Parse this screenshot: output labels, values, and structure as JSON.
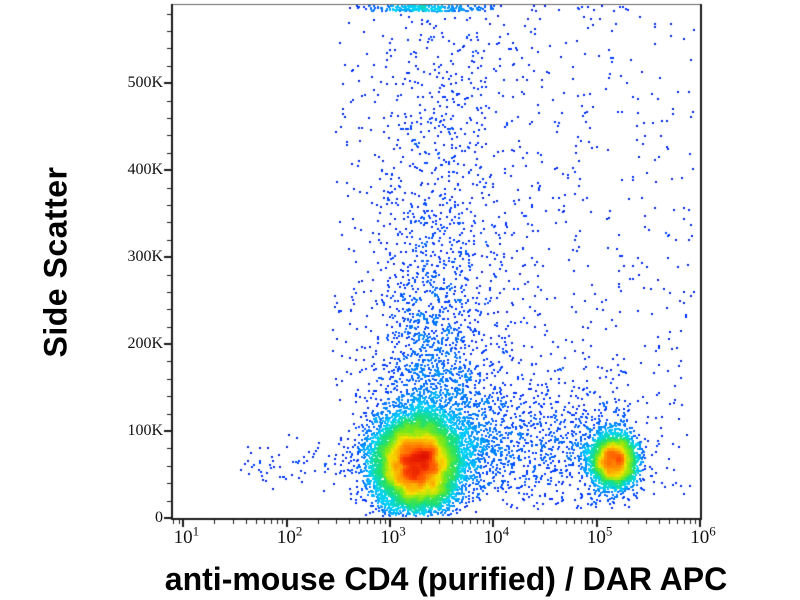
{
  "chart_data": {
    "type": "scatter",
    "subtype": "flow_cytometry_pseudocolor_density_dot_plot",
    "title": "",
    "xlabel": "anti-mouse CD4 (purified) / DAR APC",
    "ylabel": "Side Scatter",
    "x_scale": "log10",
    "x_range_log10": [
      0.9,
      6.0
    ],
    "y_range": [
      0,
      590000
    ],
    "grid": false,
    "legend": false,
    "background": "#ffffff",
    "axis_color": "#1a1a1a",
    "x_ticks": [
      {
        "log10": 1,
        "base": "10",
        "exp": "1"
      },
      {
        "log10": 2,
        "base": "10",
        "exp": "2"
      },
      {
        "log10": 3,
        "base": "10",
        "exp": "3"
      },
      {
        "log10": 4,
        "base": "10",
        "exp": "4"
      },
      {
        "log10": 5,
        "base": "10",
        "exp": "5"
      },
      {
        "log10": 6,
        "base": "10",
        "exp": "6"
      }
    ],
    "x_minor_ticks_per_decade": [
      2,
      3,
      4,
      5,
      6,
      7,
      8,
      9
    ],
    "y_ticks": {
      "values": [
        0,
        100000,
        200000,
        300000,
        400000,
        500000
      ],
      "labels": [
        "0",
        "100K",
        "200K",
        "300K",
        "400K",
        "500K"
      ],
      "minor_step": 20000,
      "minor_max": 580000
    },
    "colormap": {
      "name": "jet-pseudocolor (density: blue = sparse, red = dense)",
      "stops": [
        [
          0.0,
          "#000090"
        ],
        [
          0.16,
          "#0030ff"
        ],
        [
          0.36,
          "#00d2ff"
        ],
        [
          0.52,
          "#1ee06e"
        ],
        [
          0.64,
          "#7ce817"
        ],
        [
          0.74,
          "#f5e300"
        ],
        [
          0.84,
          "#ff9000"
        ],
        [
          0.93,
          "#ff4600"
        ],
        [
          1.0,
          "#e01000"
        ]
      ]
    },
    "populations": [
      {
        "name": "CD4-negative main population",
        "count": 12500,
        "x": {
          "dist": "gauss",
          "mean": 3.26,
          "sd": 0.205,
          "min": 1.9,
          "max": 4.6
        },
        "y": {
          "dist": "gauss",
          "mean": 62000,
          "sd": 26500,
          "min": 2500,
          "max": 245000
        }
      },
      {
        "name": "high-SSC plume above main population",
        "count": 2400,
        "x": {
          "dist": "gauss",
          "mean": 3.42,
          "sd": 0.3,
          "min": 2.4,
          "max": 4.6
        },
        "y": {
          "dist": "exp",
          "base": 60000,
          "scale": 150000,
          "max": 580000
        }
      },
      {
        "name": "sparse mid/high-SSC background left-center",
        "count": 330,
        "x": {
          "dist": "uniform",
          "min": 2.45,
          "max": 4.5
        },
        "y": {
          "dist": "uniform",
          "min": 130000,
          "max": 578000
        }
      },
      {
        "name": "off-scale pileup band at top edge",
        "count": 270,
        "x": {
          "dist": "gauss",
          "mean": 3.35,
          "sd": 0.3,
          "min": 2.5,
          "max": 4.4
        },
        "y": {
          "dist": "uniform",
          "min": 582500,
          "max": 589500
        }
      },
      {
        "name": "top-edge stragglers right side",
        "count": 16,
        "x": {
          "dist": "uniform",
          "min": 4.35,
          "max": 5.35
        },
        "y": {
          "dist": "uniform",
          "min": 582500,
          "max": 589500
        }
      },
      {
        "name": "low-SSC bridge between populations",
        "count": 950,
        "x": {
          "dist": "uniform",
          "min": 3.75,
          "max": 5.32
        },
        "y": {
          "dist": "gauss",
          "mean": 82000,
          "sd": 42000,
          "min": 9000,
          "max": 210000
        }
      },
      {
        "name": "CD4-positive population (APC bright)",
        "count": 3400,
        "x": {
          "dist": "gauss",
          "mean": 5.17,
          "sd": 0.11,
          "min": 4.7,
          "max": 5.8
        },
        "y": {
          "dist": "gauss",
          "mean": 66000,
          "sd": 15000,
          "min": 12000,
          "max": 165000
        }
      },
      {
        "name": "dim left tail of main population",
        "count": 80,
        "x": {
          "dist": "uniform",
          "min": 1.55,
          "max": 2.8
        },
        "y": {
          "dist": "gauss",
          "mean": 60000,
          "sd": 17000,
          "min": 15000,
          "max": 110000
        }
      },
      {
        "name": "sparse background right half",
        "count": 560,
        "x": {
          "dist": "uniform",
          "min": 3.55,
          "max": 5.95
        },
        "y": {
          "dist": "uniform",
          "min": 22000,
          "max": 578000
        }
      }
    ]
  }
}
